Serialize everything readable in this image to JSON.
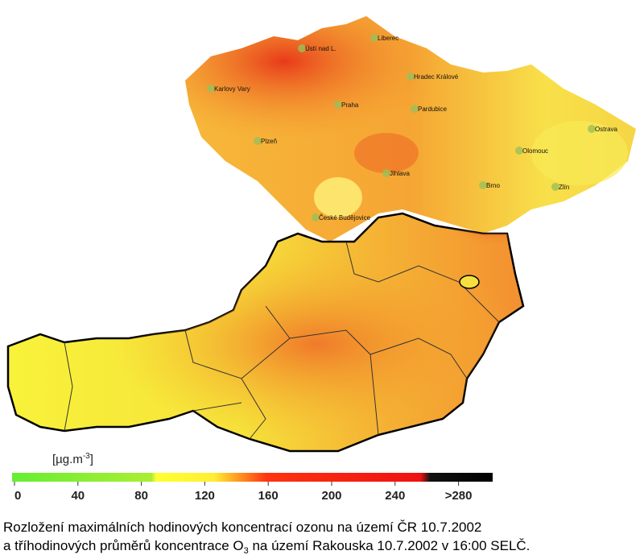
{
  "cities": [
    "Ústí nad L.",
    "Liberec",
    "Karlovy Vary",
    "Hradec Králové",
    "Praha",
    "Pardubice",
    "Plzeň",
    "Ostrava",
    "Olomouc",
    "Jihlava",
    "Brno",
    "Zlín",
    "České Budějovice"
  ],
  "unit_label": {
    "text": "[µg.m",
    "sup": "-3",
    "end": "]"
  },
  "legend": {
    "range": [
      0,
      300
    ],
    "ticks": [
      0,
      40,
      80,
      120,
      160,
      200,
      240,
      {
        "value": 280,
        "label": ">280"
      }
    ]
  },
  "caption": {
    "line1": "Rozložení maximálních hodinových koncentrací ozonu na území ČR 10.7.2002",
    "line2": {
      "text": " a tříhodinových průměrů koncentrace O",
      "sub": "3",
      "end": " na území Rakouska 10.7.2002 v 16:00 SELČ."
    }
  }
}
